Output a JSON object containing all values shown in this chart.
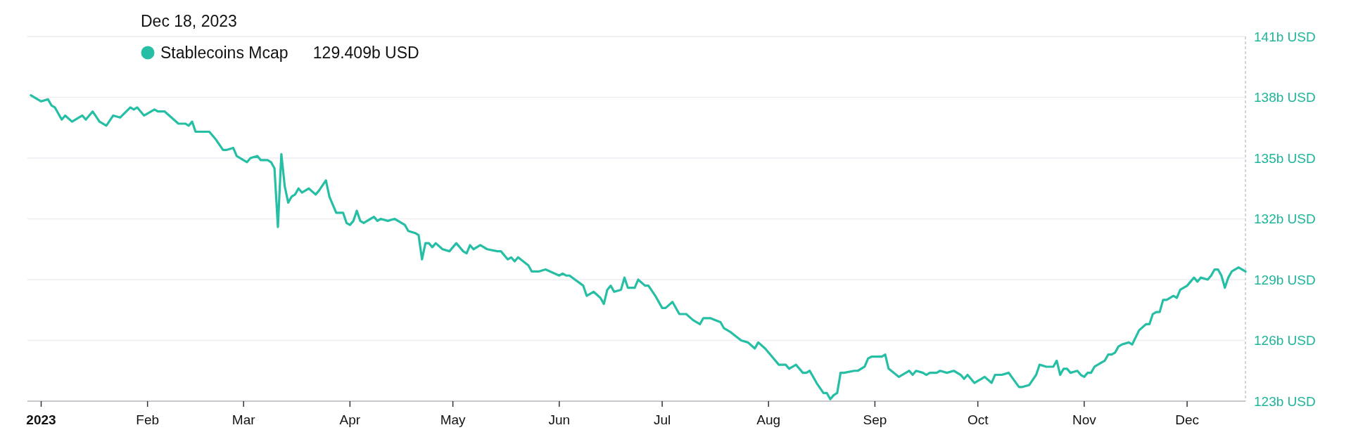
{
  "chart_data": {
    "type": "line",
    "annotations": [
      "Dec 18, 2023",
      "129.409b USD"
    ],
    "legend": "top left",
    "grid": "y",
    "xlim": [
      "2022-12-28",
      "2023-12-18"
    ],
    "xticks": [
      {
        "value": "2023-01-01",
        "label": "2023"
      },
      {
        "value": "2023-02-01",
        "label": "Feb"
      },
      {
        "value": "2023-03-01",
        "label": "Mar"
      },
      {
        "value": "2023-04-01",
        "label": "Apr"
      },
      {
        "value": "2023-05-01",
        "label": "May"
      },
      {
        "value": "2023-06-01",
        "label": "Jun"
      },
      {
        "value": "2023-07-01",
        "label": "Jul"
      },
      {
        "value": "2023-08-01",
        "label": "Aug"
      },
      {
        "value": "2023-09-01",
        "label": "Sep"
      },
      {
        "value": "2023-10-01",
        "label": "Oct"
      },
      {
        "value": "2023-11-01",
        "label": "Nov"
      },
      {
        "value": "2023-12-01",
        "label": "Dec"
      }
    ],
    "ylim": [
      123,
      141
    ],
    "yticks": [
      {
        "value": 123,
        "label": "123b USD"
      },
      {
        "value": 126,
        "label": "126b USD"
      },
      {
        "value": 129,
        "label": "129b USD"
      },
      {
        "value": 132,
        "label": "132b USD"
      },
      {
        "value": 135,
        "label": "135b USD"
      },
      {
        "value": 138,
        "label": "138b USD"
      },
      {
        "value": 141,
        "label": "141b USD"
      }
    ],
    "series": [
      {
        "name": "Stablecoins Mcap",
        "color": "#26bfa5",
        "x": [
          "2022-12-29",
          "2023-01-01",
          "2023-01-03",
          "2023-01-04",
          "2023-01-05",
          "2023-01-07",
          "2023-01-08",
          "2023-01-10",
          "2023-01-13",
          "2023-01-14",
          "2023-01-16",
          "2023-01-18",
          "2023-01-20",
          "2023-01-22",
          "2023-01-24",
          "2023-01-27",
          "2023-01-28",
          "2023-01-29",
          "2023-01-31",
          "2023-02-01",
          "2023-02-03",
          "2023-02-04",
          "2023-02-06",
          "2023-02-10",
          "2023-02-12",
          "2023-02-13",
          "2023-02-14",
          "2023-02-15",
          "2023-02-16",
          "2023-02-19",
          "2023-02-21",
          "2023-02-23",
          "2023-02-24",
          "2023-02-26",
          "2023-02-27",
          "2023-03-02",
          "2023-03-03",
          "2023-03-05",
          "2023-03-06",
          "2023-03-08",
          "2023-03-09",
          "2023-03-10",
          "2023-03-11",
          "2023-03-12",
          "2023-03-13",
          "2023-03-14",
          "2023-03-15",
          "2023-03-16",
          "2023-03-17",
          "2023-03-18",
          "2023-03-20",
          "2023-03-22",
          "2023-03-23",
          "2023-03-25",
          "2023-03-26",
          "2023-03-28",
          "2023-03-30",
          "2023-03-31",
          "2023-04-01",
          "2023-04-02",
          "2023-04-03",
          "2023-04-04",
          "2023-04-05",
          "2023-04-07",
          "2023-04-08",
          "2023-04-09",
          "2023-04-10",
          "2023-04-12",
          "2023-04-14",
          "2023-04-17",
          "2023-04-18",
          "2023-04-20",
          "2023-04-21",
          "2023-04-22",
          "2023-04-23",
          "2023-04-24",
          "2023-04-25",
          "2023-04-26",
          "2023-04-28",
          "2023-04-30",
          "2023-05-02",
          "2023-05-04",
          "2023-05-05",
          "2023-05-06",
          "2023-05-07",
          "2023-05-09",
          "2023-05-11",
          "2023-05-14",
          "2023-05-15",
          "2023-05-17",
          "2023-05-18",
          "2023-05-19",
          "2023-05-20",
          "2023-05-23",
          "2023-05-24",
          "2023-05-26",
          "2023-05-28",
          "2023-06-01",
          "2023-06-02",
          "2023-06-03",
          "2023-06-04",
          "2023-06-08",
          "2023-06-09",
          "2023-06-11",
          "2023-06-13",
          "2023-06-14",
          "2023-06-15",
          "2023-06-16",
          "2023-06-17",
          "2023-06-19",
          "2023-06-20",
          "2023-06-21",
          "2023-06-23",
          "2023-06-24",
          "2023-06-26",
          "2023-06-27",
          "2023-06-29",
          "2023-07-01",
          "2023-07-02",
          "2023-07-04",
          "2023-07-06",
          "2023-07-08",
          "2023-07-10",
          "2023-07-12",
          "2023-07-13",
          "2023-07-15",
          "2023-07-18",
          "2023-07-19",
          "2023-07-21",
          "2023-07-24",
          "2023-07-26",
          "2023-07-28",
          "2023-07-29",
          "2023-07-31",
          "2023-08-02",
          "2023-08-04",
          "2023-08-06",
          "2023-08-07",
          "2023-08-09",
          "2023-08-11",
          "2023-08-12",
          "2023-08-13",
          "2023-08-15",
          "2023-08-17",
          "2023-08-18",
          "2023-08-19",
          "2023-08-20",
          "2023-08-21",
          "2023-08-22",
          "2023-08-23",
          "2023-08-26",
          "2023-08-27",
          "2023-08-29",
          "2023-08-30",
          "2023-08-31",
          "2023-09-03",
          "2023-09-04",
          "2023-09-05",
          "2023-09-08",
          "2023-09-10",
          "2023-09-11",
          "2023-09-12",
          "2023-09-13",
          "2023-09-15",
          "2023-09-16",
          "2023-09-17",
          "2023-09-19",
          "2023-09-20",
          "2023-09-22",
          "2023-09-24",
          "2023-09-26",
          "2023-09-27",
          "2023-09-28",
          "2023-09-30",
          "2023-10-01",
          "2023-10-02",
          "2023-10-03",
          "2023-10-05",
          "2023-10-06",
          "2023-10-08",
          "2023-10-10",
          "2023-10-13",
          "2023-10-14",
          "2023-10-16",
          "2023-10-18",
          "2023-10-19",
          "2023-10-21",
          "2023-10-23",
          "2023-10-24",
          "2023-10-25",
          "2023-10-26",
          "2023-10-27",
          "2023-10-28",
          "2023-10-30",
          "2023-10-31",
          "2023-11-01",
          "2023-11-02",
          "2023-11-03",
          "2023-11-04",
          "2023-11-06",
          "2023-11-07",
          "2023-11-08",
          "2023-11-09",
          "2023-11-10",
          "2023-11-11",
          "2023-11-12",
          "2023-11-14",
          "2023-11-15",
          "2023-11-17",
          "2023-11-19",
          "2023-11-20",
          "2023-11-21",
          "2023-11-22",
          "2023-11-23",
          "2023-11-24",
          "2023-11-25",
          "2023-11-27",
          "2023-11-28",
          "2023-11-29",
          "2023-12-01",
          "2023-12-02",
          "2023-12-03",
          "2023-12-04",
          "2023-12-05",
          "2023-12-07",
          "2023-12-08",
          "2023-12-09",
          "2023-12-10",
          "2023-12-11",
          "2023-12-12",
          "2023-12-13",
          "2023-12-14",
          "2023-12-16",
          "2023-12-18"
        ],
        "values": [
          138.1,
          137.8,
          137.9,
          137.6,
          137.5,
          136.9,
          137.1,
          136.8,
          137.1,
          136.9,
          137.3,
          136.8,
          136.6,
          137.1,
          137.0,
          137.5,
          137.4,
          137.5,
          137.1,
          137.2,
          137.4,
          137.3,
          137.3,
          136.7,
          136.7,
          136.6,
          136.8,
          136.3,
          136.3,
          136.3,
          135.9,
          135.4,
          135.4,
          135.5,
          135.1,
          134.8,
          135.0,
          135.1,
          134.9,
          134.9,
          134.8,
          134.5,
          131.6,
          135.2,
          133.6,
          132.8,
          133.1,
          133.2,
          133.5,
          133.3,
          133.5,
          133.2,
          133.4,
          133.9,
          133.1,
          132.3,
          132.3,
          131.8,
          131.7,
          131.9,
          132.4,
          131.9,
          131.8,
          132.0,
          132.1,
          131.9,
          132.0,
          131.9,
          132.0,
          131.7,
          131.4,
          131.3,
          131.2,
          130.0,
          130.8,
          130.8,
          130.6,
          130.8,
          130.5,
          130.4,
          130.8,
          130.4,
          130.3,
          130.7,
          130.5,
          130.7,
          130.5,
          130.4,
          130.4,
          130.0,
          130.1,
          129.9,
          130.1,
          129.7,
          129.4,
          129.4,
          129.5,
          129.2,
          129.3,
          129.2,
          129.2,
          128.7,
          128.2,
          128.4,
          128.1,
          127.8,
          128.5,
          128.7,
          128.4,
          128.5,
          129.1,
          128.6,
          128.6,
          129.0,
          128.7,
          128.7,
          128.2,
          127.6,
          127.6,
          127.9,
          127.3,
          127.3,
          127.0,
          126.8,
          127.1,
          127.1,
          126.9,
          126.6,
          126.4,
          126.0,
          125.9,
          125.6,
          125.9,
          125.6,
          125.2,
          124.8,
          124.8,
          124.6,
          124.8,
          124.4,
          124.4,
          124.5,
          123.9,
          123.4,
          123.4,
          123.1,
          123.3,
          123.4,
          124.4,
          124.4,
          124.5,
          124.5,
          124.7,
          125.1,
          125.2,
          125.2,
          125.3,
          124.6,
          124.2,
          124.4,
          124.5,
          124.3,
          124.5,
          124.4,
          124.3,
          124.4,
          124.4,
          124.5,
          124.4,
          124.5,
          124.3,
          124.1,
          124.3,
          123.9,
          124.0,
          124.1,
          124.2,
          123.9,
          124.3,
          124.3,
          124.4,
          123.7,
          123.7,
          123.8,
          124.3,
          124.8,
          124.7,
          124.7,
          125.0,
          124.3,
          124.6,
          124.6,
          124.4,
          124.5,
          124.3,
          124.2,
          124.4,
          124.4,
          124.7,
          124.9,
          125.0,
          125.3,
          125.3,
          125.4,
          125.7,
          125.8,
          125.9,
          125.8,
          126.5,
          126.8,
          126.8,
          127.3,
          127.4,
          127.4,
          128.0,
          128.0,
          128.2,
          128.1,
          128.5,
          128.7,
          128.9,
          129.1,
          128.9,
          129.1,
          129.0,
          129.2,
          129.5,
          129.5,
          129.2,
          128.6,
          129.1,
          129.4,
          129.6,
          129.4
        ]
      }
    ]
  }
}
